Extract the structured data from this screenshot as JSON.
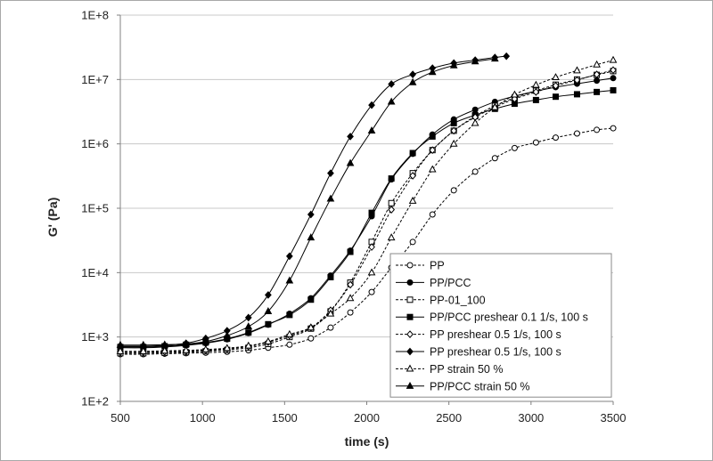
{
  "chart_data": {
    "type": "line",
    "xlabel": "time (s)",
    "ylabel": "G' (Pa)",
    "xlim": [
      500,
      3500
    ],
    "xticks": [
      500,
      1000,
      1500,
      2000,
      2500,
      3000,
      3500
    ],
    "xtick_labels": [
      "500",
      "1000",
      "1500",
      "2000",
      "2500",
      "3000",
      "3500"
    ],
    "ylim": [
      100,
      100000000
    ],
    "yscale": "log",
    "yticks": [
      100,
      1000,
      10000,
      100000,
      1000000,
      10000000,
      100000000
    ],
    "ytick_labels": [
      "1E+2",
      "1E+3",
      "1E+4",
      "1E+5",
      "1E+6",
      "1E+7",
      "1E+8"
    ],
    "grid": "horizontal",
    "legend_position": "bottom-right",
    "series": [
      {
        "name": "PP",
        "marker": "circle-open",
        "line": "dashed",
        "x": [
          500,
          640,
          770,
          900,
          1020,
          1150,
          1280,
          1400,
          1530,
          1660,
          1780,
          1900,
          2030,
          2150,
          2280,
          2400,
          2530,
          2660,
          2780,
          2900,
          3030,
          3150,
          3280,
          3400,
          3500
        ],
        "y": [
          540,
          540,
          550,
          560,
          570,
          590,
          620,
          680,
          760,
          950,
          1400,
          2400,
          5000,
          12000,
          30000,
          80000,
          190000,
          370000,
          600000,
          860000,
          1050000,
          1250000,
          1450000,
          1650000,
          1750000
        ]
      },
      {
        "name": "PP/PCC",
        "marker": "circle-filled",
        "line": "solid",
        "x": [
          500,
          640,
          770,
          900,
          1020,
          1150,
          1280,
          1400,
          1530,
          1660,
          1780,
          1900,
          2030,
          2150,
          2280,
          2400,
          2530,
          2660,
          2780,
          2900,
          3030,
          3150,
          3280,
          3400,
          3500
        ],
        "y": [
          680,
          680,
          700,
          740,
          800,
          920,
          1150,
          1550,
          2300,
          4000,
          9000,
          22000,
          75000,
          280000,
          700000,
          1400000,
          2400000,
          3400000,
          4500000,
          5500000,
          6600000,
          7600000,
          8600000,
          9600000,
          10500000
        ]
      },
      {
        "name": "PP-01_100",
        "marker": "square-open",
        "line": "dashed",
        "x": [
          500,
          640,
          770,
          900,
          1020,
          1150,
          1280,
          1400,
          1530,
          1660,
          1780,
          1900,
          2030,
          2150,
          2280,
          2400,
          2530,
          2660,
          2780,
          2900,
          3030,
          3150,
          3280,
          3400,
          3500
        ],
        "y": [
          560,
          560,
          570,
          580,
          600,
          630,
          680,
          780,
          1000,
          1350,
          2500,
          7000,
          30000,
          120000,
          350000,
          800000,
          1600000,
          2700000,
          3900000,
          5200000,
          6700000,
          8300000,
          10000000,
          11800000,
          13500000
        ]
      },
      {
        "name": "PP/PCC preshear 0.1 1/s, 100 s",
        "marker": "square-filled",
        "line": "solid",
        "x": [
          500,
          640,
          770,
          900,
          1020,
          1150,
          1280,
          1400,
          1530,
          1660,
          1780,
          1900,
          2030,
          2150,
          2280,
          2400,
          2530,
          2660,
          2780,
          2900,
          3030,
          3150,
          3280,
          3400,
          3500
        ],
        "y": [
          700,
          700,
          720,
          760,
          820,
          940,
          1170,
          1580,
          2200,
          3800,
          8500,
          21000,
          85000,
          290000,
          720000,
          1300000,
          2100000,
          2800000,
          3500000,
          4200000,
          4800000,
          5400000,
          5900000,
          6400000,
          6800000
        ]
      },
      {
        "name": "PP preshear 0.5 1/s, 100 s",
        "marker": "diamond-open",
        "line": "dashed",
        "x": [
          500,
          640,
          770,
          900,
          1020,
          1150,
          1280,
          1400,
          1530,
          1660,
          1780,
          1900,
          2030,
          2150,
          2280,
          2400,
          2530,
          2660,
          2780,
          2900,
          3030,
          3150,
          3280,
          3400,
          3500
        ],
        "y": [
          580,
          580,
          590,
          600,
          620,
          650,
          710,
          830,
          1050,
          1400,
          2600,
          6500,
          25000,
          95000,
          320000,
          800000,
          1600000,
          2600000,
          3700000,
          5000000,
          6400000,
          8000000,
          9800000,
          12000000,
          14000000
        ]
      },
      {
        "name": "PP preshear 0.5 1/s, 100 s",
        "marker": "diamond-filled",
        "line": "solid",
        "x": [
          500,
          640,
          770,
          900,
          1020,
          1150,
          1280,
          1400,
          1530,
          1660,
          1780,
          1900,
          2030,
          2150,
          2280,
          2400,
          2530,
          2660,
          2780,
          2850
        ],
        "y": [
          720,
          720,
          740,
          800,
          950,
          1250,
          2000,
          4500,
          18000,
          80000,
          350000,
          1300000,
          4000000,
          8500000,
          12000000,
          15000000,
          18000000,
          20000000,
          22000000,
          23000000
        ]
      },
      {
        "name": "PP strain 50 %",
        "marker": "triangle-open",
        "line": "dashed",
        "x": [
          500,
          640,
          770,
          900,
          1020,
          1150,
          1280,
          1400,
          1530,
          1660,
          1780,
          1900,
          2030,
          2150,
          2280,
          2400,
          2530,
          2660,
          2780,
          2900,
          3030,
          3150,
          3280,
          3400,
          3500
        ],
        "y": [
          600,
          600,
          610,
          620,
          640,
          670,
          730,
          850,
          1100,
          1400,
          2300,
          4000,
          10000,
          35000,
          130000,
          400000,
          1000000,
          2100000,
          3700000,
          5800000,
          8200000,
          10800000,
          13800000,
          17000000,
          20000000
        ]
      },
      {
        "name": "PP/PCC strain 50 %",
        "marker": "triangle-filled",
        "line": "solid",
        "x": [
          500,
          640,
          770,
          900,
          1020,
          1150,
          1280,
          1400,
          1530,
          1660,
          1780,
          1900,
          2030,
          2150,
          2280,
          2400,
          2530,
          2660,
          2780
        ],
        "y": [
          750,
          750,
          760,
          780,
          850,
          1050,
          1450,
          2500,
          7500,
          35000,
          140000,
          500000,
          1600000,
          4500000,
          9000000,
          13000000,
          16500000,
          19000000,
          21000000
        ]
      }
    ]
  }
}
